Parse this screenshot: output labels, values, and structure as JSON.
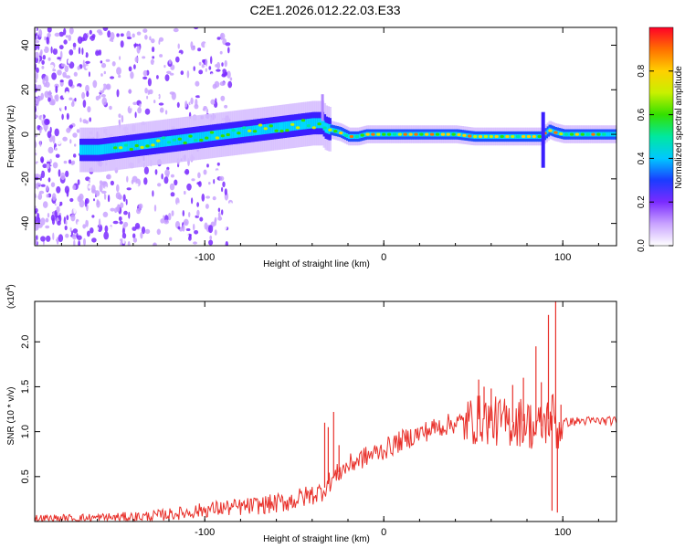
{
  "title": "C2E1.2026.012.22.03.E33",
  "chart_data": [
    {
      "type": "heatmap",
      "name": "spectrogram",
      "xlabel": "Height of straight line (km)",
      "ylabel": "Frequency (Hz)",
      "xlim": [
        -195,
        130
      ],
      "ylim": [
        -50,
        48
      ],
      "xticks": [
        -100,
        0,
        100
      ],
      "yticks": [
        -40,
        -20,
        0,
        20,
        40
      ],
      "tone_x": [
        -160,
        -150,
        -140,
        -130,
        -120,
        -110,
        -100,
        -90,
        -80,
        -70,
        -60,
        -50,
        -40,
        -35,
        -33,
        -30,
        -25,
        -20,
        -15,
        -10,
        -5,
        0,
        10,
        20,
        30,
        40,
        50,
        60,
        70,
        80,
        88,
        92,
        95,
        100,
        110,
        120,
        130
      ],
      "tone_frequency_hz": [
        -7,
        -6,
        -5,
        -4,
        -3,
        -2,
        -1,
        0,
        1,
        2,
        3,
        4,
        5,
        5,
        3,
        2,
        1,
        -1,
        -1,
        0,
        0,
        0,
        0,
        0,
        0,
        0,
        -1,
        -1,
        -1,
        -1,
        -1,
        2,
        1,
        0,
        0,
        0,
        0
      ],
      "colorbar": {
        "label": "Normalized spectral amplitude",
        "range": [
          0.0,
          1.0
        ],
        "ticks": [
          0.0,
          0.2,
          0.4,
          0.6,
          0.8
        ],
        "tick_labels": [
          "0.0",
          "0.2",
          "0.4",
          "0.6",
          "0.8"
        ]
      }
    },
    {
      "type": "line",
      "name": "snr",
      "xlabel": "Height of straight line (km)",
      "ylabel": "SNR (10 * v/v)",
      "scale_label": "(x10",
      "scale_exponent": "4",
      "scale_close": ")",
      "xlim": [
        -195,
        130
      ],
      "ylim": [
        0.0,
        2.45
      ],
      "xticks": [
        -100,
        0,
        100
      ],
      "yticks": [
        0.5,
        1.0,
        1.5,
        2.0
      ],
      "ytick_labels": [
        "0.5",
        "1.0",
        "1.5",
        "2.0"
      ],
      "color": "#e8302a",
      "series": [
        {
          "name": "SNR",
          "x": [
            -195,
            -180,
            -160,
            -140,
            -130,
            -120,
            -110,
            -100,
            -90,
            -80,
            -70,
            -60,
            -50,
            -45,
            -40,
            -35,
            -32,
            -30,
            -27,
            -25,
            -20,
            -15,
            -10,
            -5,
            0,
            10,
            20,
            30,
            40,
            50,
            55,
            60,
            70,
            80,
            85,
            90,
            95,
            97,
            100,
            110,
            120,
            130
          ],
          "y": [
            0.03,
            0.03,
            0.04,
            0.05,
            0.06,
            0.08,
            0.1,
            0.13,
            0.15,
            0.16,
            0.18,
            0.2,
            0.24,
            0.27,
            0.3,
            0.33,
            0.4,
            0.45,
            0.5,
            0.55,
            0.62,
            0.68,
            0.72,
            0.76,
            0.8,
            0.9,
            0.98,
            1.05,
            1.1,
            1.12,
            1.15,
            1.12,
            1.1,
            1.12,
            1.0,
            1.1,
            1.2,
            1.0,
            1.1,
            1.12,
            1.12,
            1.12
          ],
          "spikes": [
            {
              "x": -33,
              "y": 1.1
            },
            {
              "x": -31,
              "y": 1.05
            },
            {
              "x": -28,
              "y": 1.22
            },
            {
              "x": -25,
              "y": 0.85
            },
            {
              "x": 53,
              "y": 1.58
            },
            {
              "x": 56,
              "y": 1.5
            },
            {
              "x": 60,
              "y": 1.48
            },
            {
              "x": 72,
              "y": 1.52
            },
            {
              "x": 78,
              "y": 1.6
            },
            {
              "x": 85,
              "y": 1.95
            },
            {
              "x": 88,
              "y": 1.55
            },
            {
              "x": 92,
              "y": 2.3
            },
            {
              "x": 94,
              "y": 0.12
            },
            {
              "x": 96,
              "y": 2.45
            },
            {
              "x": 97,
              "y": 0.1
            },
            {
              "x": 99,
              "y": 1.3
            }
          ]
        }
      ]
    }
  ]
}
